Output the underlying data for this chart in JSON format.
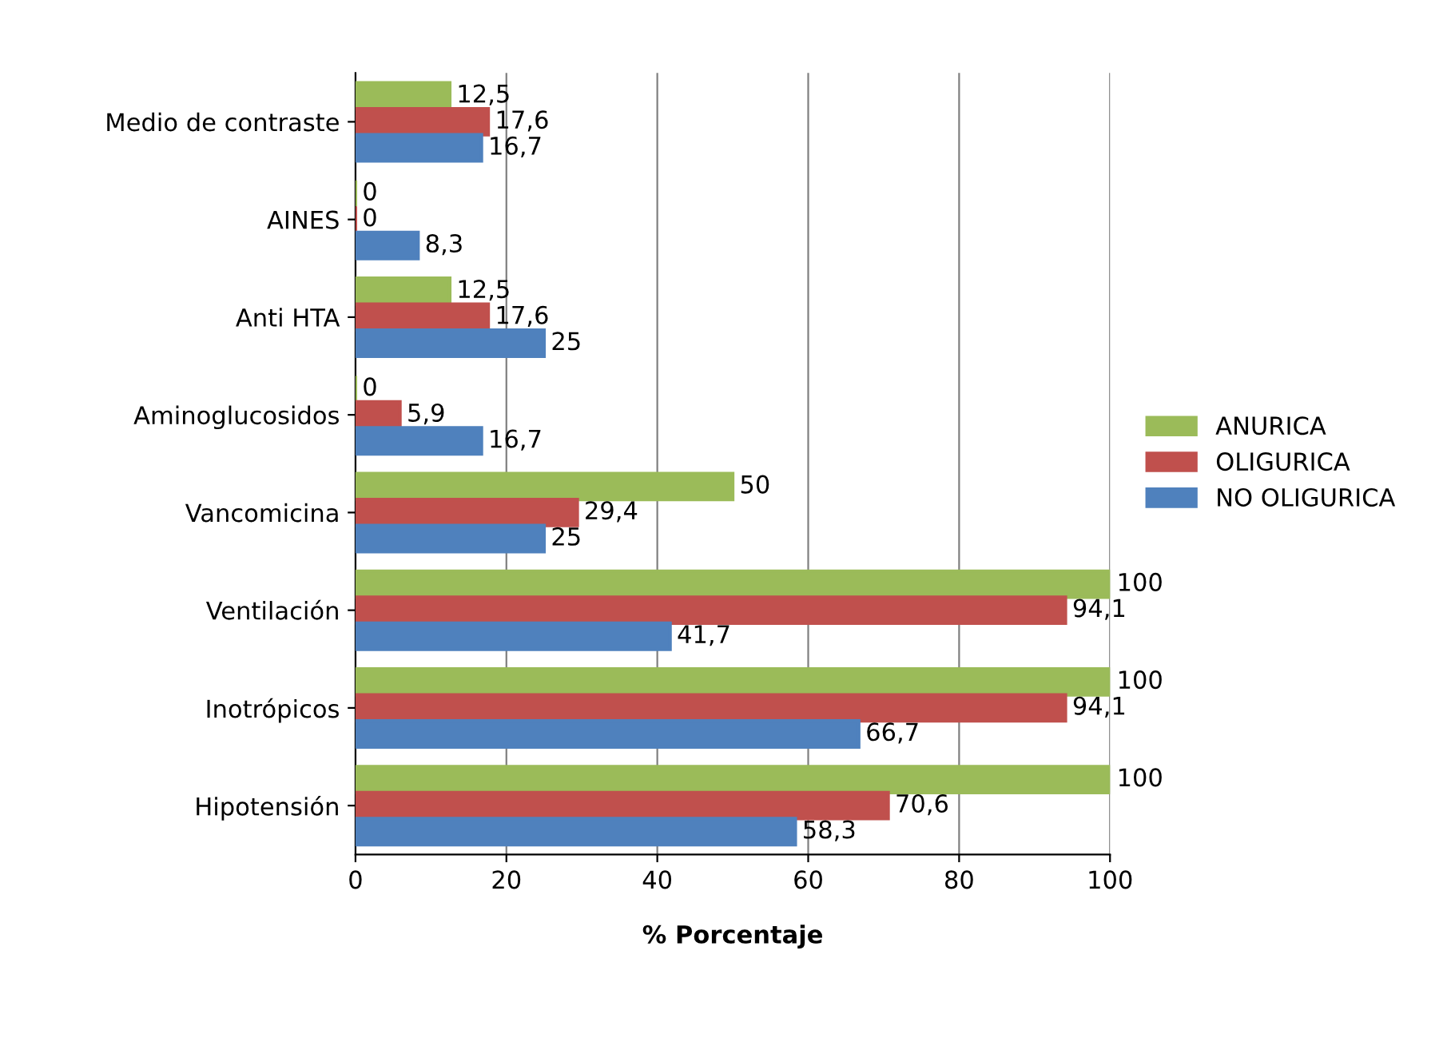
{
  "chart_data": {
    "type": "bar",
    "orientation": "horizontal",
    "xlabel": "% Porcentaje",
    "categories": [
      "Medio de contraste",
      "AINES",
      "Anti HTA",
      "Aminoglucosidos",
      "Vancomicina",
      "Ventilación",
      "Inotrópicos",
      "Hipotensión"
    ],
    "series": [
      {
        "name": "ANURICA",
        "color": "#9bbb59",
        "values": [
          12.5,
          0,
          12.5,
          0,
          50,
          100,
          100,
          100
        ],
        "value_labels": [
          "12,5",
          "0",
          "12,5",
          "0",
          "50",
          "100",
          "100",
          "100"
        ]
      },
      {
        "name": "OLIGURICA",
        "color": "#c0504d",
        "values": [
          17.6,
          0,
          17.6,
          5.9,
          29.4,
          94.1,
          94.1,
          70.6
        ],
        "value_labels": [
          "17,6",
          "0",
          "17,6",
          "5,9",
          "29,4",
          "94,1",
          "94,1",
          "70,6"
        ]
      },
      {
        "name": "NO OLIGURICA",
        "color": "#4f81bd",
        "values": [
          16.7,
          8.3,
          25,
          16.7,
          25,
          41.7,
          66.7,
          58.3
        ],
        "value_labels": [
          "16,7",
          "8,3",
          "25",
          "16,7",
          "25",
          "41,7",
          "66,7",
          "58,3"
        ]
      }
    ],
    "xlim": [
      0,
      100
    ],
    "xticks": [
      0,
      20,
      40,
      60,
      80,
      100
    ],
    "grid": "x",
    "legend": "right"
  }
}
